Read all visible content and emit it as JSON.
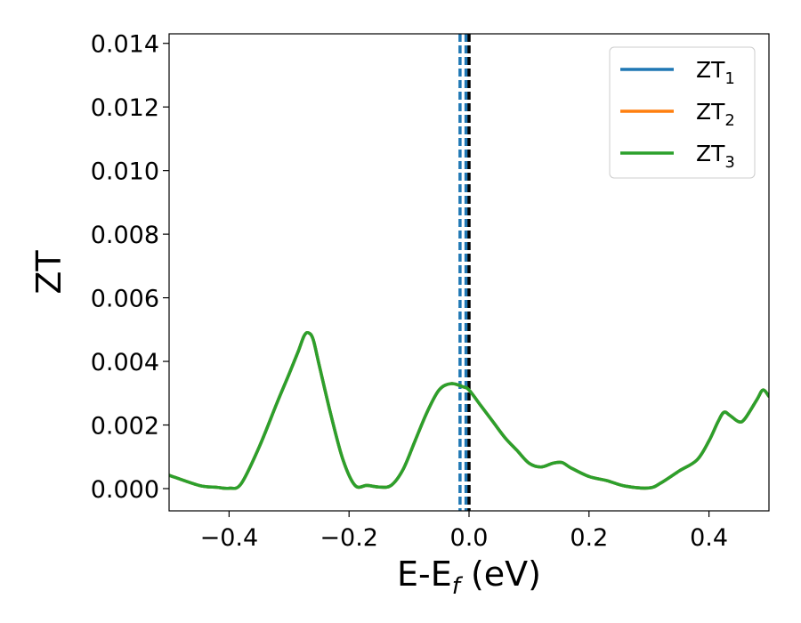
{
  "chart_data": {
    "type": "line",
    "xlabel": {
      "main": "E-E",
      "sub": "f",
      "unit": " (eV)"
    },
    "ylabel": "ZT",
    "xlim": [
      -0.5,
      0.5
    ],
    "ylim": [
      -0.0007,
      0.0143
    ],
    "x_ticks": [
      -0.4,
      -0.2,
      0.0,
      0.2,
      0.4
    ],
    "x_tick_labels": [
      "−0.4",
      "−0.2",
      "0.0",
      "0.2",
      "0.4"
    ],
    "y_ticks": [
      0.0,
      0.002,
      0.004,
      0.006,
      0.008,
      0.01,
      0.012,
      0.014
    ],
    "y_tick_labels": [
      "0.000",
      "0.002",
      "0.004",
      "0.006",
      "0.008",
      "0.010",
      "0.012",
      "0.014"
    ],
    "grid": false,
    "legend_position": "top-right",
    "legend": [
      {
        "base": "ZT",
        "sub": "1",
        "color": "#1f77b4"
      },
      {
        "base": "ZT",
        "sub": "2",
        "color": "#ff7f0e"
      },
      {
        "base": "ZT",
        "sub": "3",
        "color": "#2ca02c"
      }
    ],
    "x": [
      -0.5,
      -0.45,
      -0.42,
      -0.4,
      -0.38,
      -0.35,
      -0.32,
      -0.3,
      -0.285,
      -0.275,
      -0.268,
      -0.26,
      -0.25,
      -0.23,
      -0.21,
      -0.19,
      -0.17,
      -0.15,
      -0.13,
      -0.11,
      -0.09,
      -0.07,
      -0.05,
      -0.03,
      -0.01,
      0.0,
      0.02,
      0.04,
      0.06,
      0.08,
      0.1,
      0.12,
      0.14,
      0.155,
      0.17,
      0.2,
      0.23,
      0.26,
      0.3,
      0.32,
      0.35,
      0.38,
      0.4,
      0.415,
      0.425,
      0.435,
      0.45,
      0.46,
      0.48,
      0.49,
      0.5
    ],
    "series": [
      {
        "values": [
          0.00042,
          0.0001,
          4e-05,
          1e-05,
          0.00015,
          0.0013,
          0.0027,
          0.0036,
          0.0043,
          0.0048,
          0.0049,
          0.0047,
          0.0039,
          0.0023,
          0.0009,
          0.0001,
          0.0001,
          5e-05,
          0.0001,
          0.0006,
          0.0015,
          0.0024,
          0.0031,
          0.0033,
          0.0032,
          0.0031,
          0.0026,
          0.0021,
          0.0016,
          0.0012,
          0.0008,
          0.00068,
          0.0008,
          0.00082,
          0.00065,
          0.00038,
          0.00025,
          8e-05,
          2e-05,
          0.00018,
          0.00055,
          0.0009,
          0.0015,
          0.0021,
          0.0024,
          0.0023,
          0.0021,
          0.0022,
          0.0028,
          0.0031,
          0.0029
        ]
      },
      {
        "values": [
          0.00042,
          0.0001,
          4e-05,
          1e-05,
          0.00015,
          0.0013,
          0.0027,
          0.0036,
          0.0043,
          0.0048,
          0.0049,
          0.0047,
          0.0039,
          0.0023,
          0.0009,
          0.0001,
          0.0001,
          5e-05,
          0.0001,
          0.0006,
          0.0015,
          0.0024,
          0.0031,
          0.0033,
          0.0032,
          0.0031,
          0.0026,
          0.0021,
          0.0016,
          0.0012,
          0.0008,
          0.00068,
          0.0008,
          0.00082,
          0.00065,
          0.00038,
          0.00025,
          8e-05,
          2e-05,
          0.00018,
          0.00055,
          0.0009,
          0.0015,
          0.0021,
          0.0024,
          0.0023,
          0.0021,
          0.0022,
          0.0028,
          0.0031,
          0.0029
        ]
      },
      {
        "values": [
          0.00042,
          0.0001,
          4e-05,
          1e-05,
          0.00015,
          0.0013,
          0.0027,
          0.0036,
          0.0043,
          0.0048,
          0.0049,
          0.0047,
          0.0039,
          0.0023,
          0.0009,
          0.0001,
          0.0001,
          5e-05,
          0.0001,
          0.0006,
          0.0015,
          0.0024,
          0.0031,
          0.0033,
          0.0032,
          0.0031,
          0.0026,
          0.0021,
          0.0016,
          0.0012,
          0.0008,
          0.00068,
          0.0008,
          0.00082,
          0.00065,
          0.00038,
          0.00025,
          8e-05,
          2e-05,
          0.00018,
          0.00055,
          0.0009,
          0.0015,
          0.0021,
          0.0024,
          0.0023,
          0.0021,
          0.0022,
          0.0028,
          0.0031,
          0.0029
        ]
      }
    ],
    "vertical_lines": [
      {
        "x": -0.015,
        "color": "#1f77b4",
        "style": "dashed"
      },
      {
        "x": -0.005,
        "color": "#1f77b4",
        "style": "dashed"
      },
      {
        "x": 0.0,
        "color": "#000000",
        "style": "dashed"
      }
    ]
  }
}
